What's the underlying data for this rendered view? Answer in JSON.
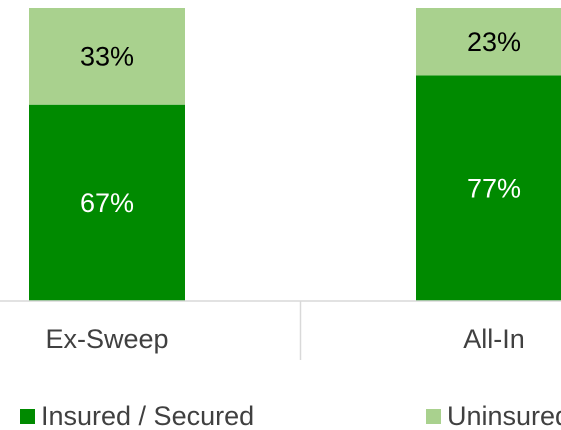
{
  "chart_data": {
    "type": "stacked_bar",
    "categories": [
      "Ex-Sweep",
      "All-In"
    ],
    "series": [
      {
        "name": "Insured / Secured",
        "color": "#008a00",
        "values": [
          67,
          77
        ],
        "value_labels": [
          "67%",
          "77%"
        ]
      },
      {
        "name": "Uninsured",
        "color": "#a9d18e",
        "values": [
          33,
          23
        ],
        "value_labels": [
          "33%",
          "23%"
        ]
      }
    ],
    "ylim": [
      0,
      100
    ],
    "legend": "bottom"
  }
}
